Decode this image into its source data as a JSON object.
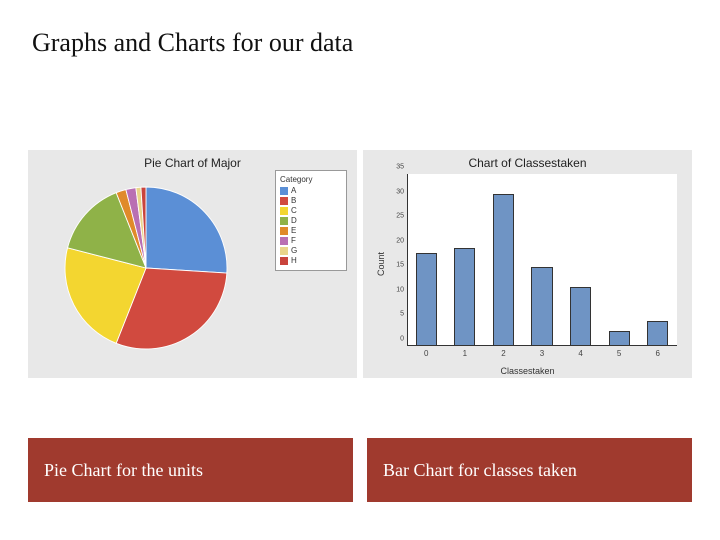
{
  "page_title": "Graphs and Charts for our data",
  "pie_chart": {
    "type": "pie",
    "title": "Pie Chart of Major",
    "title_fontsize": 12,
    "legend_title": "Category",
    "background_color": "#e8e8e8",
    "slices": [
      {
        "label": "A",
        "value": 26,
        "color": "#5b8fd6"
      },
      {
        "label": "B",
        "value": 30,
        "color": "#d14a3f"
      },
      {
        "label": "C",
        "value": 23,
        "color": "#f3d630"
      },
      {
        "label": "D",
        "value": 15,
        "color": "#8fb248"
      },
      {
        "label": "E",
        "value": 2,
        "color": "#e08a2a"
      },
      {
        "label": "F",
        "value": 2,
        "color": "#b96fb3"
      },
      {
        "label": "G",
        "value": 1,
        "color": "#e9d48a"
      },
      {
        "label": "H",
        "value": 1,
        "color": "#c9443c"
      }
    ]
  },
  "bar_chart": {
    "type": "bar",
    "title": "Chart of Classestaken",
    "title_fontsize": 12,
    "xlabel": "Classestaken",
    "ylabel": "Count",
    "label_fontsize": 9,
    "background_color": "#e8e8e8",
    "plot_background": "#ffffff",
    "bar_color": "#6f94c4",
    "bar_border_color": "#333333",
    "categories": [
      "0",
      "1",
      "2",
      "3",
      "4",
      "5",
      "6"
    ],
    "values": [
      19,
      20,
      31,
      16,
      12,
      3,
      5
    ],
    "ylim": [
      0,
      35
    ],
    "ytick_step": 5,
    "bar_width": 0.55
  },
  "captions": {
    "left": "Pie Chart for the units",
    "right": "Bar Chart for classes taken",
    "background_color": "#a03a2e",
    "text_color": "#ffffff",
    "fontsize": 18
  }
}
